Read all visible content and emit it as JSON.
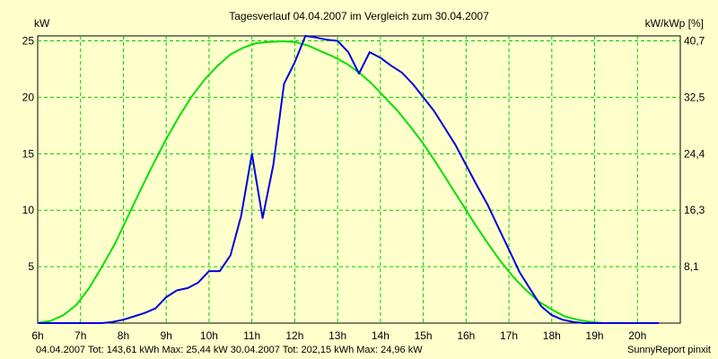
{
  "chart_data": {
    "type": "line",
    "title": "Tagesverlauf 04.04.2007 im Vergleich zum 30.04.2007",
    "ylabel": "kW",
    "ylabel_right": "kW/kWp [%]",
    "xlim": [
      6,
      21
    ],
    "ylim": [
      0,
      25.44
    ],
    "x_tick_labels": [
      "6h",
      "7h",
      "8h",
      "9h",
      "10h",
      "11h",
      "12h",
      "13h",
      "14h",
      "15h",
      "16h",
      "17h",
      "18h",
      "19h",
      "20h"
    ],
    "y_ticks": [
      5,
      10,
      15,
      20,
      25
    ],
    "y_tick_labels": [
      "5",
      "10",
      "15",
      "20",
      "25"
    ],
    "y2_tick_labels": [
      "8,1",
      "16,3",
      "24,4",
      "32,5",
      "40,7"
    ],
    "grid": true,
    "colors": {
      "background": "#ffffcc",
      "grid": "#00cc00",
      "series1": "#0000dd",
      "series2": "#00e000",
      "axis": "#000000"
    },
    "series": [
      {
        "name": "04.04.2007",
        "color": "#0000dd",
        "x": [
          6,
          7.1,
          7.5,
          7.75,
          8,
          8.25,
          8.5,
          8.75,
          9,
          9.25,
          9.5,
          9.75,
          10,
          10.25,
          10.5,
          10.75,
          11,
          11.25,
          11.5,
          11.75,
          12,
          12.25,
          12.5,
          12.75,
          13,
          13.25,
          13.5,
          13.75,
          14,
          14.25,
          14.5,
          14.75,
          15,
          15.25,
          15.5,
          15.75,
          16,
          16.25,
          16.5,
          16.75,
          17,
          17.25,
          17.5,
          17.75,
          18,
          18.25,
          18.5,
          18.75,
          19,
          19.25,
          19.5,
          19.75,
          20,
          20.25,
          20.5
        ],
        "y": [
          0,
          0,
          0,
          0.1,
          0.3,
          0.6,
          0.9,
          1.3,
          2.3,
          2.9,
          3.1,
          3.6,
          4.6,
          4.6,
          6.0,
          9.5,
          15.0,
          9.3,
          14.0,
          21.2,
          23.1,
          25.44,
          25.3,
          25.1,
          25.0,
          24.0,
          22.1,
          24.0,
          23.5,
          22.8,
          22.2,
          21.2,
          20.0,
          18.8,
          17.3,
          15.8,
          14.0,
          12.2,
          10.5,
          8.5,
          6.5,
          4.5,
          3.0,
          1.5,
          0.7,
          0.3,
          0.1,
          0.0,
          0.0,
          0.0,
          0.0,
          0.0,
          0.0,
          0.0,
          0.0
        ],
        "total_kwh": "143,61",
        "max_kw": "25,44"
      },
      {
        "name": "30.04.2007",
        "color": "#00e000",
        "x": [
          6,
          6.3,
          6.6,
          6.9,
          7.2,
          7.5,
          7.8,
          8.1,
          8.4,
          8.7,
          9,
          9.3,
          9.6,
          9.9,
          10.2,
          10.5,
          10.8,
          11.1,
          11.4,
          11.7,
          12,
          12.3,
          12.6,
          12.9,
          13.2,
          13.5,
          13.8,
          14.1,
          14.4,
          14.7,
          15,
          15.3,
          15.6,
          15.9,
          16.2,
          16.5,
          16.8,
          17.1,
          17.4,
          17.7,
          18,
          18.3,
          18.6,
          18.9,
          19.2,
          19.5,
          19.8,
          20.1,
          20.4
        ],
        "y": [
          0,
          0.2,
          0.7,
          1.6,
          3.1,
          5.0,
          7.0,
          9.4,
          11.8,
          14.1,
          16.3,
          18.3,
          20.1,
          21.6,
          22.8,
          23.8,
          24.4,
          24.8,
          24.9,
          24.96,
          24.9,
          24.6,
          24.1,
          23.6,
          23.0,
          22.2,
          21.2,
          20.0,
          18.8,
          17.4,
          15.9,
          14.2,
          12.4,
          10.6,
          8.8,
          7.1,
          5.5,
          4.1,
          2.9,
          1.9,
          1.2,
          0.6,
          0.3,
          0.1,
          0.0,
          0.0,
          0.0,
          0.0,
          0.0
        ],
        "total_kwh": "202,15",
        "max_kw": "24,96"
      }
    ],
    "footer": {
      "s1": "04.04.2007 Tot: 143,61 kWh Max: 25,44 kW",
      "s2": "30.04.2007 Tot: 202,15 kWh Max: 24,96 kW",
      "credit": "SunnyReport pinxit"
    }
  }
}
